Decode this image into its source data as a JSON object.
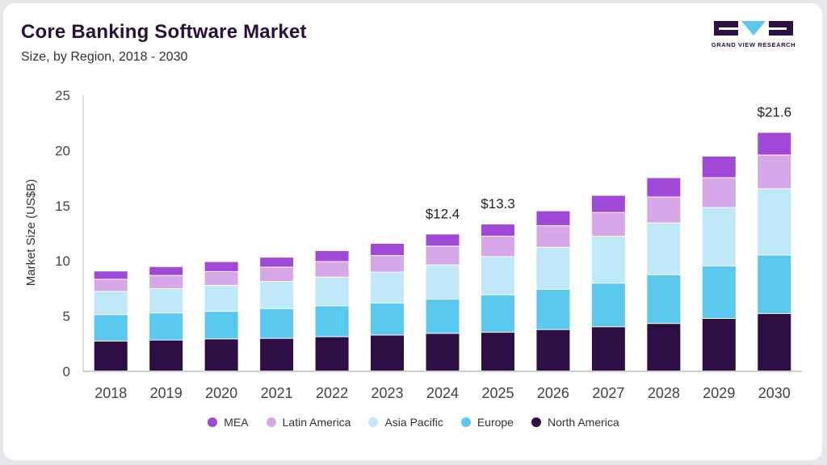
{
  "header": {
    "title": "Core Banking Software Market",
    "subtitle": "Size, by Region, 2018 - 2030"
  },
  "logo": {
    "text": "GRAND VIEW RESEARCH"
  },
  "colors": {
    "North America": "#2e0f45",
    "Europe": "#5bc8f0",
    "Asia Pacific": "#bfe8f8",
    "Latin America": "#d6a8ea",
    "MEA": "#a049d6"
  },
  "chart_data": {
    "type": "bar",
    "stacked": true,
    "ylabel": "Market Size (US$B)",
    "ylim": [
      0,
      25
    ],
    "yticks": [
      0,
      5,
      10,
      15,
      20,
      25
    ],
    "grid": false,
    "legend_position": "bottom",
    "categories": [
      "2018",
      "2019",
      "2020",
      "2021",
      "2022",
      "2023",
      "2024",
      "2025",
      "2026",
      "2027",
      "2028",
      "2029",
      "2030"
    ],
    "series": [
      {
        "name": "North America",
        "values": [
          2.7,
          2.8,
          2.9,
          2.95,
          3.1,
          3.25,
          3.4,
          3.5,
          3.75,
          4.0,
          4.3,
          4.75,
          5.2
        ]
      },
      {
        "name": "Europe",
        "values": [
          2.4,
          2.45,
          2.5,
          2.7,
          2.8,
          2.9,
          3.1,
          3.4,
          3.65,
          3.95,
          4.4,
          4.75,
          5.3
        ]
      },
      {
        "name": "Asia Pacific",
        "values": [
          2.1,
          2.2,
          2.35,
          2.45,
          2.6,
          2.8,
          3.1,
          3.45,
          3.8,
          4.25,
          4.7,
          5.3,
          6.0
        ]
      },
      {
        "name": "Latin America",
        "values": [
          1.1,
          1.2,
          1.25,
          1.3,
          1.4,
          1.5,
          1.7,
          1.85,
          1.95,
          2.15,
          2.35,
          2.7,
          3.05
        ]
      },
      {
        "name": "MEA",
        "values": [
          0.75,
          0.8,
          0.9,
          0.9,
          1.0,
          1.1,
          1.1,
          1.1,
          1.35,
          1.55,
          1.75,
          1.95,
          2.05
        ]
      }
    ],
    "annotations": [
      {
        "category": "2024",
        "label": "$12.4",
        "value": 12.4
      },
      {
        "category": "2025",
        "label": "$13.3",
        "value": 13.3
      },
      {
        "category": "2030",
        "label": "$21.6",
        "value": 21.6
      }
    ],
    "legend_order": [
      "MEA",
      "Latin America",
      "Asia Pacific",
      "Europe",
      "North America"
    ]
  }
}
